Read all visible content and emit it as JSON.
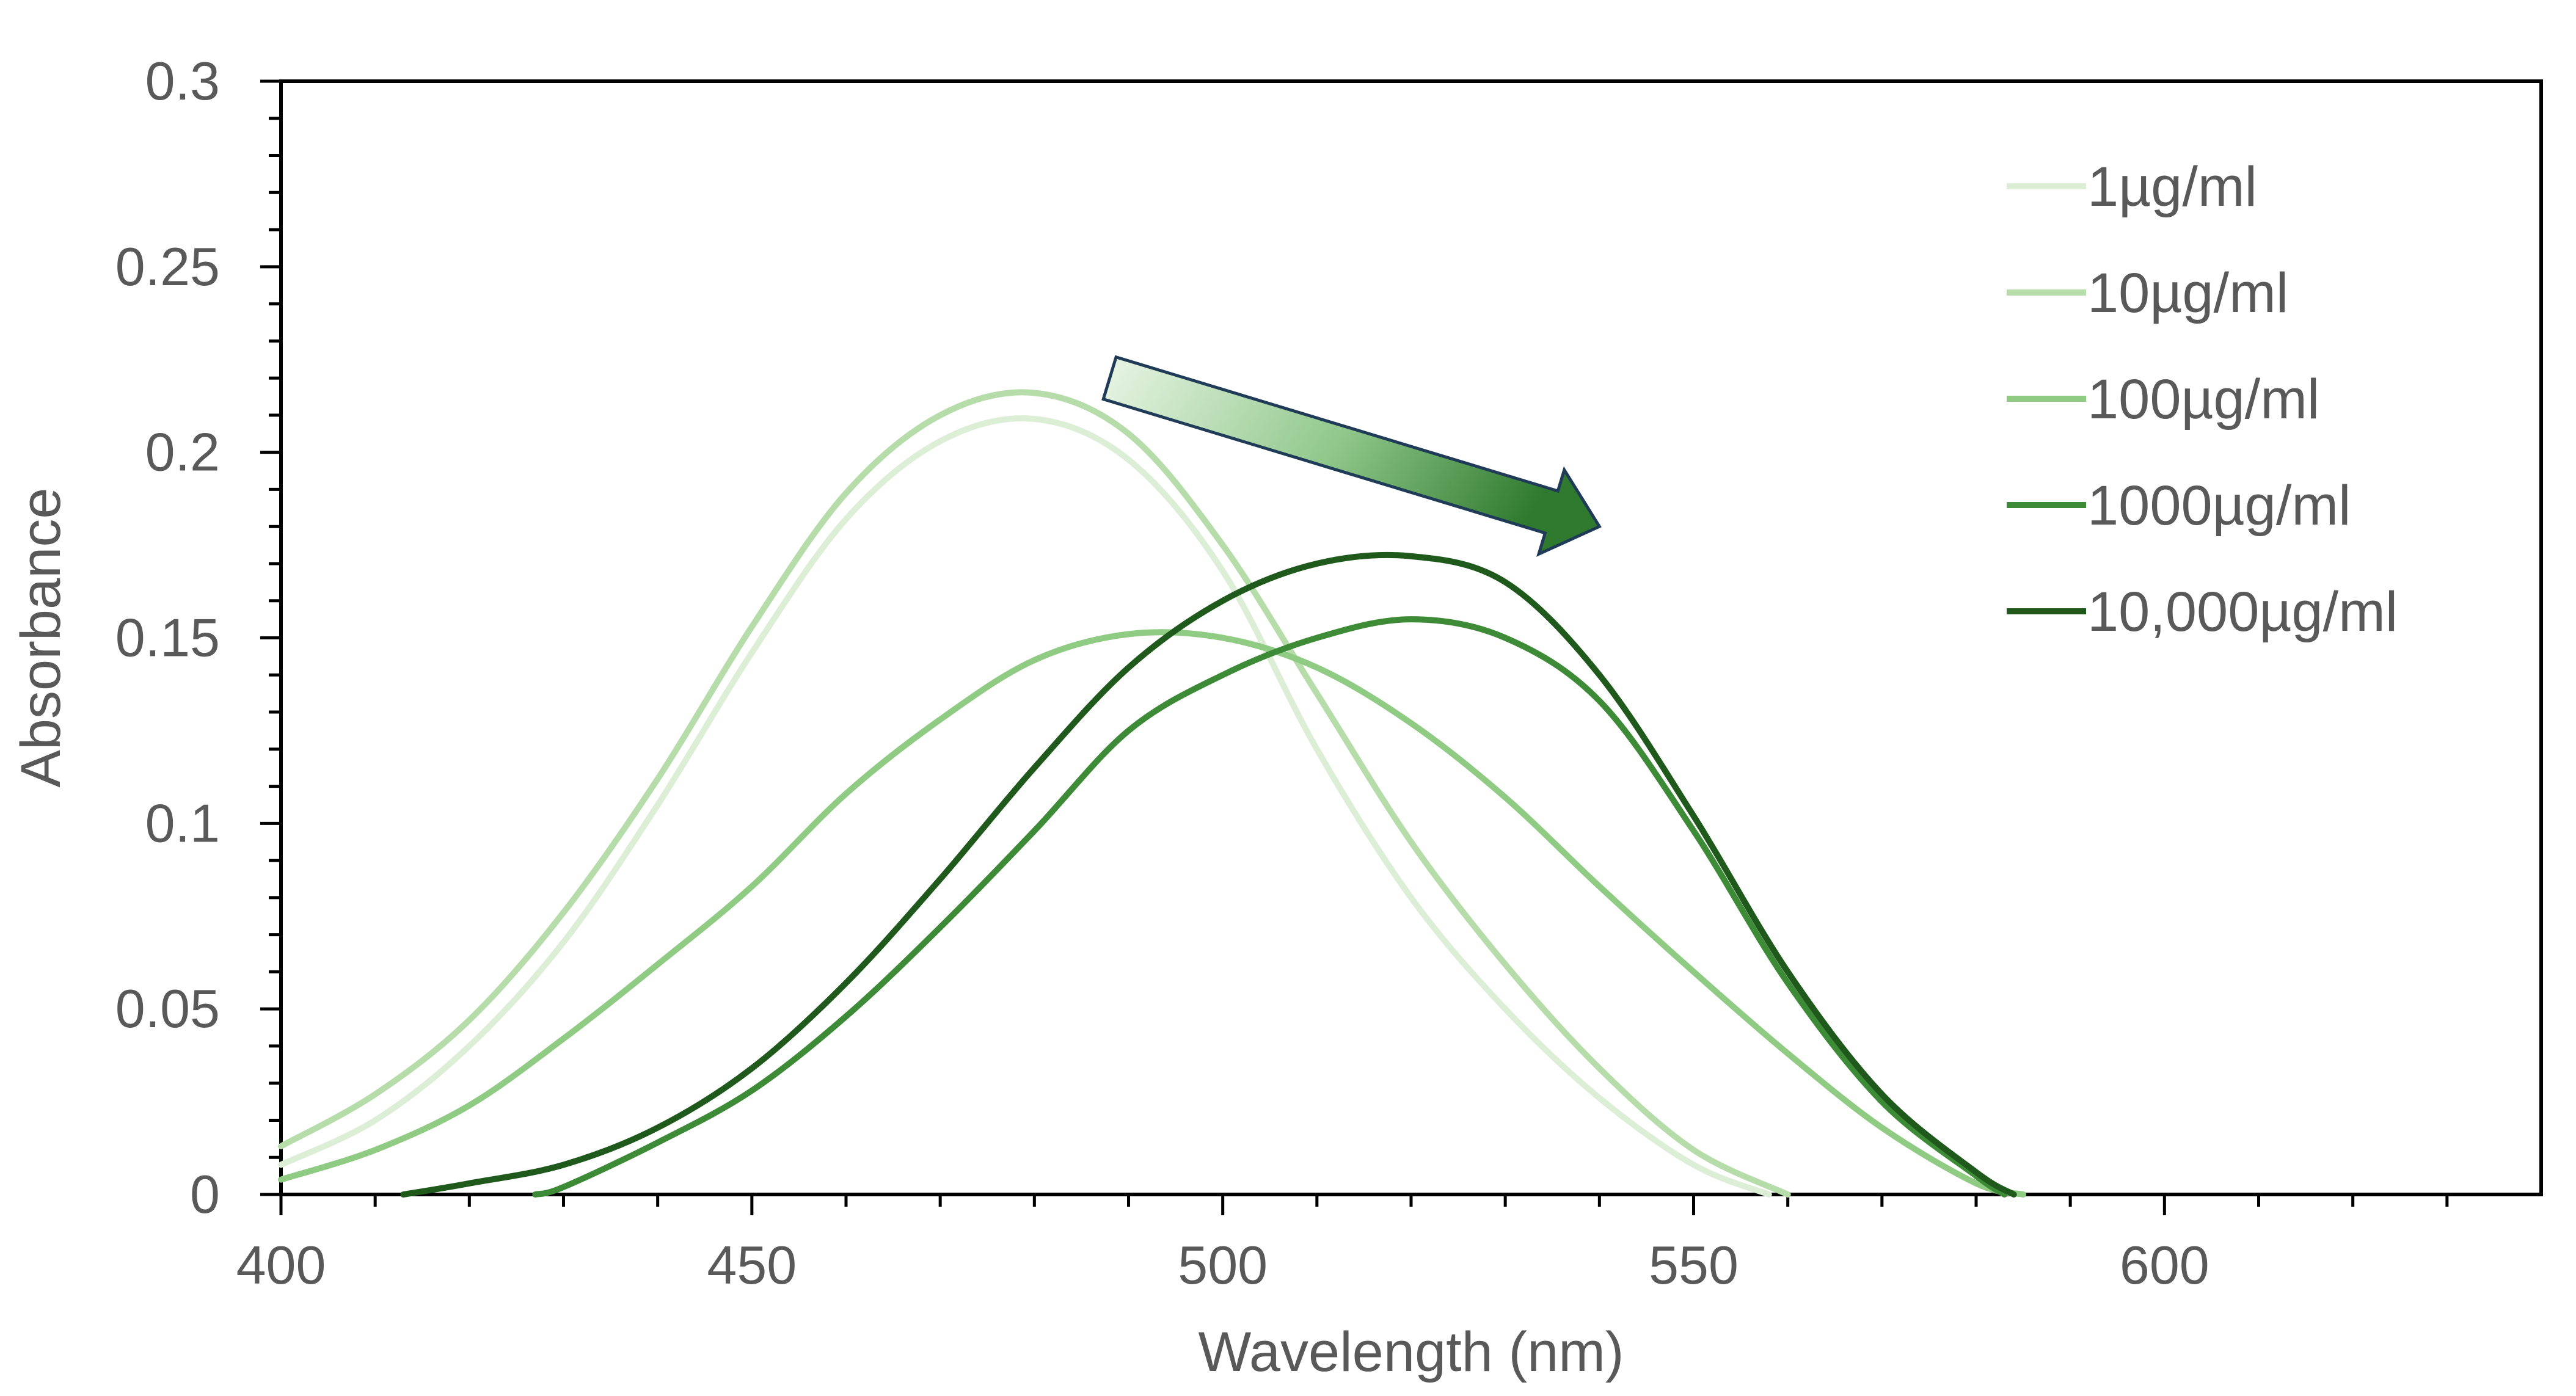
{
  "chart_data": {
    "type": "line",
    "title": "",
    "xlabel": "Wavelength (nm)",
    "ylabel": "Absorbance",
    "xlim": [
      400,
      640
    ],
    "ylim": [
      0,
      0.3
    ],
    "x_ticks": [
      400,
      450,
      500,
      550,
      600
    ],
    "x_tick_labels": [
      "400",
      "450",
      "500",
      "550",
      "600"
    ],
    "y_ticks": [
      0,
      0.05,
      0.1,
      0.15,
      0.2,
      0.25,
      0.3
    ],
    "y_tick_labels": [
      "0",
      "0.05",
      "0.1",
      "0.15",
      "0.2",
      "0.25",
      "0.3"
    ],
    "grid": false,
    "legend_position": "top-right",
    "annotations": [
      {
        "type": "arrow",
        "from": [
          488,
          0.22
        ],
        "to": [
          540,
          0.18
        ],
        "direction": "down-right"
      }
    ],
    "series": [
      {
        "name": "1µg/ml",
        "color": "#dcefd6",
        "points": [
          [
            400,
            0.008
          ],
          [
            410,
            0.02
          ],
          [
            420,
            0.04
          ],
          [
            430,
            0.068
          ],
          [
            440,
            0.105
          ],
          [
            450,
            0.146
          ],
          [
            460,
            0.182
          ],
          [
            470,
            0.203
          ],
          [
            480,
            0.209
          ],
          [
            490,
            0.198
          ],
          [
            500,
            0.168
          ],
          [
            510,
            0.12
          ],
          [
            520,
            0.08
          ],
          [
            530,
            0.05
          ],
          [
            540,
            0.026
          ],
          [
            550,
            0.008
          ],
          [
            558,
            0.0
          ]
        ]
      },
      {
        "name": "10µg/ml",
        "color": "#b6dcaa",
        "points": [
          [
            400,
            0.013
          ],
          [
            410,
            0.027
          ],
          [
            420,
            0.047
          ],
          [
            430,
            0.076
          ],
          [
            440,
            0.112
          ],
          [
            450,
            0.153
          ],
          [
            460,
            0.189
          ],
          [
            470,
            0.21
          ],
          [
            480,
            0.216
          ],
          [
            490,
            0.205
          ],
          [
            500,
            0.175
          ],
          [
            510,
            0.135
          ],
          [
            520,
            0.095
          ],
          [
            530,
            0.062
          ],
          [
            540,
            0.034
          ],
          [
            550,
            0.012
          ],
          [
            560,
            0.0
          ]
        ]
      },
      {
        "name": "100µg/ml",
        "color": "#8fcb82",
        "points": [
          [
            400,
            0.004
          ],
          [
            410,
            0.012
          ],
          [
            420,
            0.024
          ],
          [
            430,
            0.042
          ],
          [
            440,
            0.062
          ],
          [
            450,
            0.083
          ],
          [
            460,
            0.108
          ],
          [
            470,
            0.128
          ],
          [
            480,
            0.144
          ],
          [
            490,
            0.151
          ],
          [
            500,
            0.15
          ],
          [
            510,
            0.142
          ],
          [
            520,
            0.127
          ],
          [
            530,
            0.107
          ],
          [
            540,
            0.083
          ],
          [
            550,
            0.06
          ],
          [
            560,
            0.038
          ],
          [
            570,
            0.018
          ],
          [
            580,
            0.003
          ],
          [
            585,
            0.0
          ]
        ]
      },
      {
        "name": "1000µg/ml",
        "color": "#3e8b37",
        "points": [
          [
            427,
            0.0
          ],
          [
            430,
            0.002
          ],
          [
            440,
            0.014
          ],
          [
            450,
            0.028
          ],
          [
            460,
            0.048
          ],
          [
            470,
            0.072
          ],
          [
            480,
            0.098
          ],
          [
            490,
            0.125
          ],
          [
            500,
            0.14
          ],
          [
            510,
            0.15
          ],
          [
            520,
            0.155
          ],
          [
            530,
            0.15
          ],
          [
            540,
            0.133
          ],
          [
            550,
            0.098
          ],
          [
            560,
            0.057
          ],
          [
            570,
            0.025
          ],
          [
            580,
            0.005
          ],
          [
            583,
            0.0
          ]
        ]
      },
      {
        "name": "10,000µg/ml",
        "color": "#1f5a1c",
        "points": [
          [
            413,
            0.0
          ],
          [
            420,
            0.003
          ],
          [
            430,
            0.008
          ],
          [
            440,
            0.018
          ],
          [
            450,
            0.034
          ],
          [
            460,
            0.057
          ],
          [
            470,
            0.085
          ],
          [
            480,
            0.115
          ],
          [
            490,
            0.142
          ],
          [
            500,
            0.16
          ],
          [
            510,
            0.17
          ],
          [
            520,
            0.172
          ],
          [
            530,
            0.165
          ],
          [
            540,
            0.14
          ],
          [
            550,
            0.102
          ],
          [
            560,
            0.06
          ],
          [
            570,
            0.027
          ],
          [
            580,
            0.006
          ],
          [
            584,
            0.0
          ]
        ]
      }
    ]
  }
}
